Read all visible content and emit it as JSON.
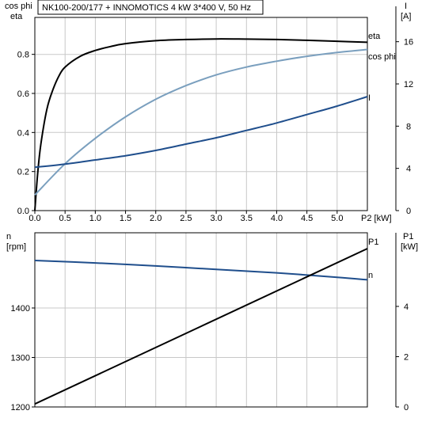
{
  "title": "NK100-200/177 + INNOMOTICS   4 kW   3*400 V, 50 Hz",
  "top_axes": {
    "left_label_1": "cos phi",
    "left_label_2": "eta",
    "right_label_1": "I",
    "right_label_2": "[A]",
    "x_label_suffix": "P2 [kW]"
  },
  "bottom_axes": {
    "left_label_1": "n",
    "left_label_2": "[rpm]",
    "right_label_1": "P1",
    "right_label_2": "[kW]"
  },
  "colors": {
    "eta": "#000000",
    "cos_phi": "#7a9fbe",
    "I": "#1f4e8c",
    "n": "#1f4e8c",
    "P1": "#000000",
    "grid": "#c8c8c8",
    "axis": "#000000"
  },
  "chart_data": [
    {
      "type": "line",
      "panel": "top",
      "xlabel": "P2 [kW]",
      "xlim": [
        0,
        5.5
      ],
      "x_ticks": [
        0.0,
        0.5,
        1.0,
        1.5,
        2.0,
        2.5,
        3.0,
        3.5,
        4.0,
        4.5,
        5.0
      ],
      "ylabel_left": "cos phi / eta",
      "ylim_left": [
        0,
        0.9
      ],
      "y_ticks_left": [
        0.0,
        0.2,
        0.4,
        0.6,
        0.8
      ],
      "ylabel_right": "I [A]",
      "ylim_right": [
        0,
        18
      ],
      "y_ticks_right": [
        0,
        4,
        8,
        12,
        16
      ],
      "grid": true,
      "series": [
        {
          "name": "eta",
          "axis": "left",
          "color": "#000000",
          "x": [
            0.0,
            0.05,
            0.1,
            0.2,
            0.3,
            0.4,
            0.5,
            0.75,
            1.0,
            1.25,
            1.5,
            2.0,
            2.5,
            3.0,
            3.5,
            4.0,
            4.5,
            5.0,
            5.5
          ],
          "y": [
            0.0,
            0.2,
            0.34,
            0.52,
            0.62,
            0.69,
            0.735,
            0.79,
            0.82,
            0.84,
            0.855,
            0.87,
            0.876,
            0.879,
            0.878,
            0.876,
            0.872,
            0.867,
            0.862
          ]
        },
        {
          "name": "cos phi",
          "axis": "left",
          "color": "#7a9fbe",
          "x": [
            0.0,
            0.5,
            1.0,
            1.5,
            2.0,
            2.5,
            3.0,
            3.5,
            4.0,
            4.5,
            5.0,
            5.5
          ],
          "y": [
            0.08,
            0.24,
            0.37,
            0.48,
            0.57,
            0.64,
            0.695,
            0.735,
            0.765,
            0.79,
            0.81,
            0.825
          ]
        },
        {
          "name": "I",
          "axis": "right",
          "color": "#1f4e8c",
          "x": [
            0.0,
            0.5,
            1.0,
            1.5,
            2.0,
            2.5,
            3.0,
            3.5,
            4.0,
            4.5,
            5.0,
            5.5
          ],
          "y": [
            4.1,
            4.4,
            4.8,
            5.2,
            5.7,
            6.3,
            6.9,
            7.6,
            8.3,
            9.1,
            9.9,
            10.8
          ]
        }
      ]
    },
    {
      "type": "line",
      "panel": "bottom",
      "xlim": [
        0,
        5.5
      ],
      "ylabel_left": "n [rpm]",
      "ylim_left": [
        1200,
        1500
      ],
      "y_ticks_left": [
        1200,
        1300,
        1400
      ],
      "ylabel_right": "P1 [kW]",
      "ylim_right": [
        0,
        6
      ],
      "y_ticks_right": [
        0,
        2,
        4
      ],
      "grid": true,
      "series": [
        {
          "name": "n",
          "axis": "left",
          "color": "#1f4e8c",
          "x": [
            0.0,
            1.0,
            2.0,
            3.0,
            4.0,
            5.0,
            5.5
          ],
          "y": [
            1496,
            1491,
            1485,
            1478,
            1471,
            1462,
            1457
          ]
        },
        {
          "name": "P1",
          "axis": "right",
          "color": "#000000",
          "x": [
            0.0,
            5.5
          ],
          "y": [
            0.12,
            6.3
          ]
        }
      ]
    }
  ]
}
